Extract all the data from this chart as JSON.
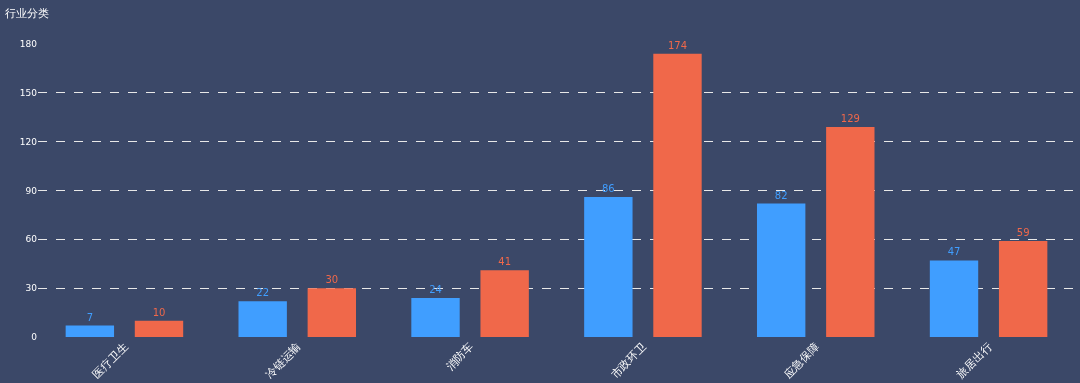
{
  "chart_data": {
    "type": "bar",
    "title": "行业分类",
    "categories": [
      "医疗卫生",
      "冷链运输",
      "消防车",
      "市政环卫",
      "应急保障",
      "旅居出行"
    ],
    "series": [
      {
        "color": "#409eff",
        "values": [
          7,
          22,
          24,
          86,
          82,
          47
        ]
      },
      {
        "color": "#f0684a",
        "values": [
          10,
          30,
          41,
          174,
          129,
          59
        ]
      }
    ],
    "ylim": [
      0,
      180
    ],
    "yticks": [
      0,
      30,
      60,
      90,
      120,
      150,
      180
    ],
    "grid": "y",
    "data_labels": true
  }
}
